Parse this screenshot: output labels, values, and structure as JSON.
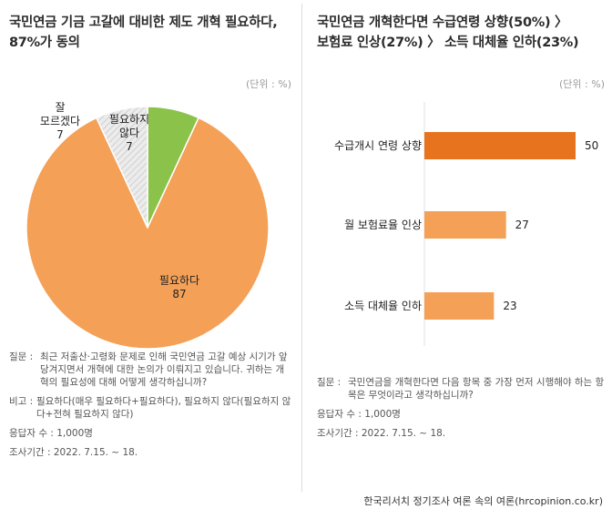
{
  "left": {
    "title_line1": "국민연금 기금 고갈에 대비한 제도 개혁 필요하다,",
    "title_line2": "87%가 동의",
    "unit": "(단위 : %)",
    "notes": {
      "question_key": "질문 :",
      "question": "최근 저출산·고령화 문제로 인해 국민연금 고갈 예상 시기가 앞당겨지면서 개혁에 대한 논의가 이뤄지고 있습니다. 귀하는 개혁의 필요성에 대해 어떻게 생각하십니까?",
      "remark_key": "비고 :",
      "remark": "필요하다(매우 필요하다+필요하다), 필요하지 않다(필요하지 않다+전혀 필요하지 않다)",
      "respondents": "응답자 수 : 1,000명",
      "period": "조사기간 : 2022. 7.15. ~ 18."
    }
  },
  "right": {
    "title_line1": "국민연금 개혁한다면 수급연령 상향(50%) 〉",
    "title_line2": "보험료 인상(27%) 〉 소득 대체율 인하(23%)",
    "unit": "(단위 : %)",
    "notes": {
      "question_key": "질문 :",
      "question": "국민연금을 개혁한다면 다음 항목 중 가장 먼저 시행해야 하는 항목은 무엇이라고 생각하십니까?",
      "respondents": "응답자 수 : 1,000명",
      "period": "조사기간 : 2022. 7.15. ~ 18."
    }
  },
  "footer": "한국리서치 정기조사 여론 속의 여론(hrcopinion.co.kr)",
  "chart_data": [
    {
      "type": "pie",
      "slices": [
        {
          "label_lines": [
            "필요하다"
          ],
          "value": 87,
          "color": "#f4a057"
        },
        {
          "label_lines": [
            "잘",
            "모르겠다"
          ],
          "value": 7,
          "color": "#e2e2e2",
          "pattern": "diagonal-stripes"
        },
        {
          "label_lines": [
            "필요하지",
            "않다"
          ],
          "value": 7,
          "color": "#8bc34a"
        }
      ]
    },
    {
      "type": "bar",
      "orientation": "horizontal",
      "categories": [
        "수급개시 연령 상향",
        "월 보험료율 인상",
        "소득 대체율 인하"
      ],
      "values": [
        50,
        27,
        23
      ],
      "colors": [
        "#e8731f",
        "#f4a057",
        "#f4a057"
      ]
    }
  ]
}
